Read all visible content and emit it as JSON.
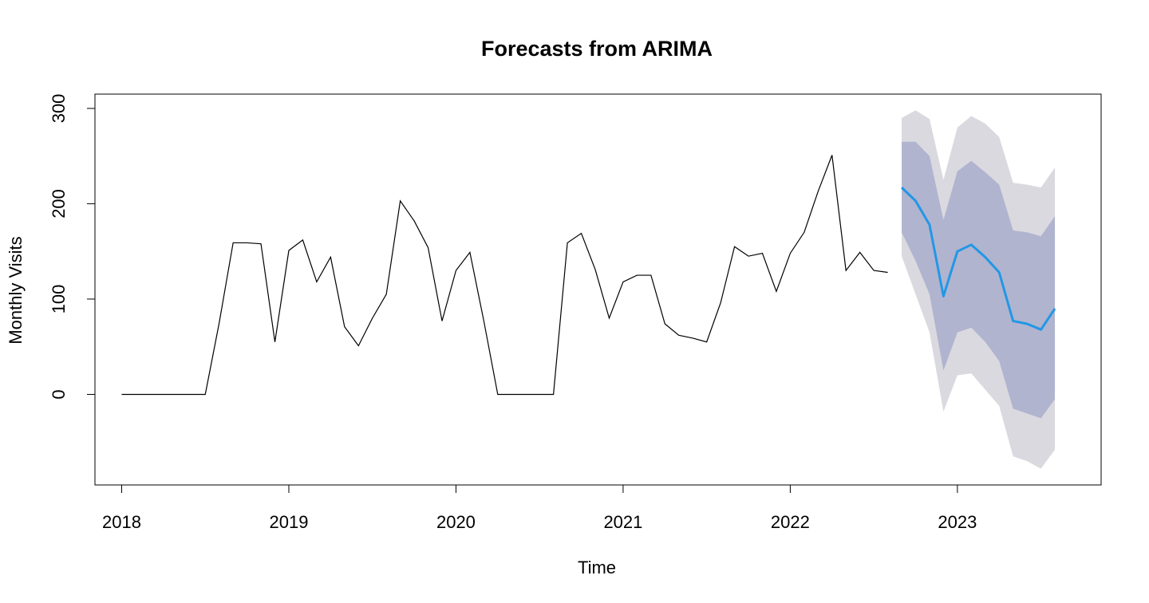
{
  "chart_data": {
    "type": "line",
    "title": "Forecasts from ARIMA",
    "xlabel": "Time",
    "ylabel": "Monthly Visits",
    "xlim": [
      2017.84,
      2023.86
    ],
    "ylim": [
      -95,
      315
    ],
    "x_ticks": [
      2018,
      2019,
      2020,
      2021,
      2022,
      2023
    ],
    "x_tick_labels": [
      "2018",
      "2019",
      "2020",
      "2021",
      "2022",
      "2023"
    ],
    "y_ticks": [
      0,
      100,
      200,
      300
    ],
    "y_tick_labels": [
      "0",
      "100",
      "200",
      "300"
    ],
    "grid": false,
    "colors": {
      "observed": "#000000",
      "forecast": "#2297E6",
      "band80": "#B0B4CF",
      "band95": "#D9D9DF"
    },
    "series": [
      {
        "role": "observed",
        "x": [
          2018.0,
          2018.0833,
          2018.1667,
          2018.25,
          2018.3333,
          2018.4167,
          2018.5,
          2018.5833,
          2018.6667,
          2018.75,
          2018.8333,
          2018.9167,
          2019.0,
          2019.0833,
          2019.1667,
          2019.25,
          2019.3333,
          2019.4167,
          2019.5,
          2019.5833,
          2019.6667,
          2019.75,
          2019.8333,
          2019.9167,
          2020.0,
          2020.0833,
          2020.1667,
          2020.25,
          2020.3333,
          2020.4167,
          2020.5,
          2020.5833,
          2020.6667,
          2020.75,
          2020.8333,
          2020.9167,
          2021.0,
          2021.0833,
          2021.1667,
          2021.25,
          2021.3333,
          2021.4167,
          2021.5,
          2021.5833,
          2021.6667,
          2021.75,
          2021.8333,
          2021.9167,
          2022.0,
          2022.0833,
          2022.1667,
          2022.25,
          2022.3333,
          2022.4167,
          2022.5,
          2022.5833
        ],
        "values": [
          0,
          0,
          0,
          0,
          0,
          0,
          0,
          75,
          159,
          159,
          158,
          55,
          151,
          162,
          118,
          144,
          71,
          51,
          80,
          105,
          203,
          182,
          154,
          77,
          130,
          149,
          77,
          0,
          0,
          0,
          0,
          0,
          159,
          169,
          131,
          80,
          118,
          125,
          125,
          74,
          62,
          59,
          55,
          96,
          155,
          145,
          148,
          108,
          148,
          170,
          213,
          251,
          130,
          149,
          130,
          128
        ]
      },
      {
        "role": "forecast",
        "x": [
          2022.6667,
          2022.75,
          2022.8333,
          2022.9167,
          2023.0,
          2023.0833,
          2023.1667,
          2023.25,
          2023.3333,
          2023.4167,
          2023.5,
          2023.5833
        ],
        "values": [
          217,
          203,
          178,
          103,
          150,
          157,
          144,
          128,
          77,
          74,
          68,
          90
        ],
        "lo80": [
          170,
          140,
          105,
          25,
          65,
          70,
          55,
          35,
          -15,
          -20,
          -25,
          -5
        ],
        "hi80": [
          265,
          265,
          250,
          183,
          234,
          245,
          233,
          220,
          172,
          170,
          166,
          187
        ],
        "lo95": [
          145,
          105,
          65,
          -18,
          20,
          22,
          5,
          -12,
          -65,
          -70,
          -78,
          -58
        ],
        "hi95": [
          290,
          298,
          289,
          225,
          280,
          292,
          284,
          270,
          222,
          220,
          217,
          238
        ]
      }
    ]
  }
}
